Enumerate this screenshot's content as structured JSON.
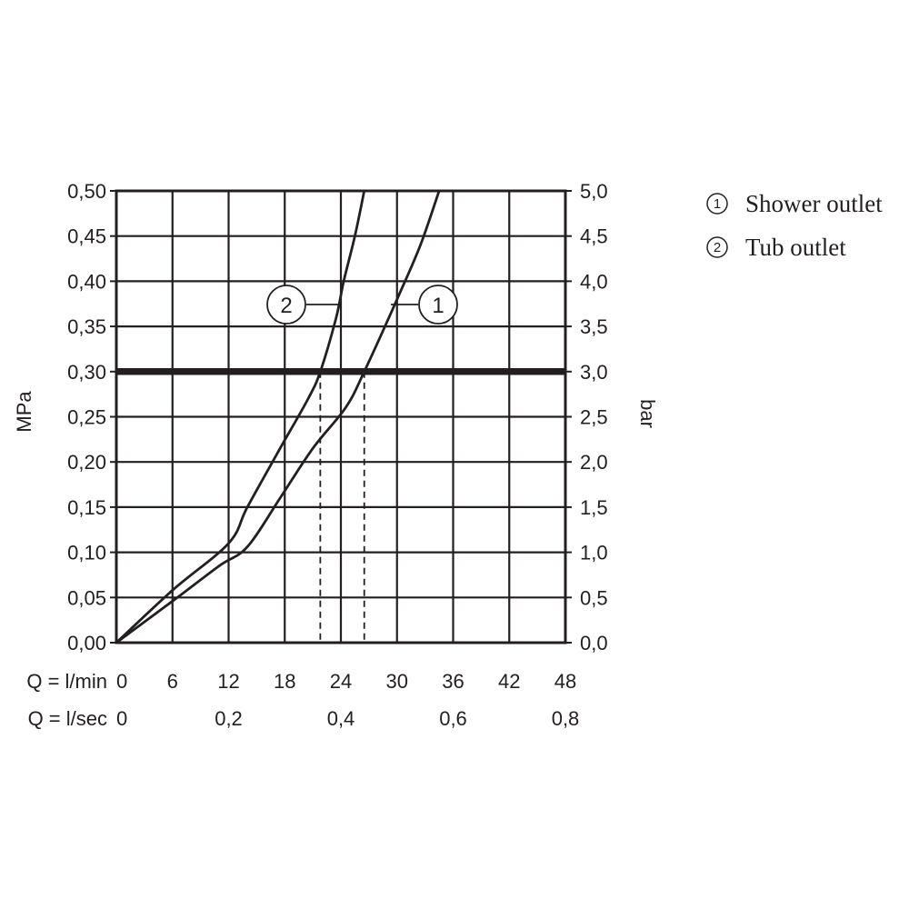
{
  "chart_data": {
    "type": "line",
    "y_left_label": "MPa",
    "y_right_label": "bar",
    "y_left_ticks": [
      "0,00",
      "0,05",
      "0,10",
      "0,15",
      "0,20",
      "0,25",
      "0,30",
      "0,35",
      "0,40",
      "0,45",
      "0,50"
    ],
    "y_right_ticks": [
      "0,0",
      "0,5",
      "1,0",
      "1,5",
      "2,0",
      "2,5",
      "3,0",
      "3,5",
      "4,0",
      "4,5",
      "5,0"
    ],
    "ylim": [
      0,
      0.5
    ],
    "xlim": [
      0,
      48
    ],
    "x_axis_rows": [
      {
        "label": "Q = l/min",
        "ticks": [
          {
            "x": 0,
            "text": "0"
          },
          {
            "x": 6,
            "text": "6"
          },
          {
            "x": 12,
            "text": "12"
          },
          {
            "x": 18,
            "text": "18"
          },
          {
            "x": 24,
            "text": "24"
          },
          {
            "x": 30,
            "text": "30"
          },
          {
            "x": 36,
            "text": "36"
          },
          {
            "x": 42,
            "text": "42"
          },
          {
            "x": 48,
            "text": "48"
          }
        ]
      },
      {
        "label": "Q = l/sec",
        "ticks": [
          {
            "x": 0,
            "text": "0"
          },
          {
            "x": 12,
            "text": "0,2"
          },
          {
            "x": 24,
            "text": "0,4"
          },
          {
            "x": 36,
            "text": "0,6"
          },
          {
            "x": 48,
            "text": "0,8"
          }
        ]
      }
    ],
    "grid": true,
    "reference_line_y": 0.3,
    "series": [
      {
        "id": "1",
        "name": "Shower outlet",
        "x": [
          0,
          6,
          11,
          14,
          17.5,
          21,
          24.5,
          26.5,
          30,
          32.5,
          34.5
        ],
        "y": [
          0,
          0.046,
          0.085,
          0.106,
          0.16,
          0.215,
          0.26,
          0.3,
          0.38,
          0.44,
          0.5
        ],
        "flow_at_reference": 26.5
      },
      {
        "id": "2",
        "name": "Tub outlet",
        "x": [
          0,
          6,
          12,
          14,
          17.5,
          20.5,
          21.8,
          23.5,
          24.3,
          25.5,
          26.5
        ],
        "y": [
          0,
          0.058,
          0.11,
          0.15,
          0.215,
          0.27,
          0.3,
          0.36,
          0.4,
          0.45,
          0.5
        ],
        "flow_at_reference": 21.8
      }
    ],
    "callouts": [
      {
        "series": "2",
        "text": "2"
      },
      {
        "series": "1",
        "text": "1"
      }
    ],
    "legend": {
      "position": "top-right",
      "items": [
        {
          "num": "1",
          "label": "Shower outlet"
        },
        {
          "num": "2",
          "label": "Tub outlet"
        }
      ]
    }
  }
}
